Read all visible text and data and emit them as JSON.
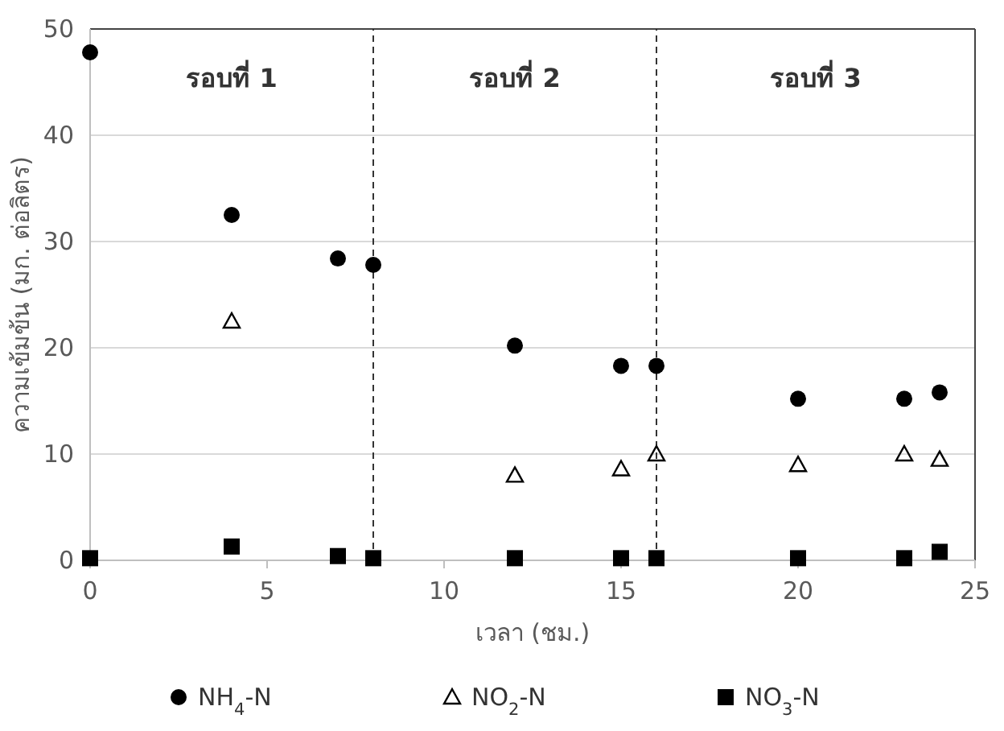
{
  "chart_data": {
    "type": "scatter",
    "xlabel": "เวลา (ชม.)",
    "ylabel": "ความเข้มข้น (มก. ต่อลิตร)",
    "xlim": [
      0,
      25
    ],
    "xticks": [
      0,
      5,
      10,
      15,
      20,
      25
    ],
    "ylim": [
      0,
      50
    ],
    "yticks": [
      0,
      10,
      20,
      30,
      40,
      50
    ],
    "grid": "y",
    "legend": "bottom",
    "series": [
      {
        "name": "NH$_{4}$-N",
        "color": "#000000",
        "marker": "circle",
        "x": [
          0,
          4,
          7,
          8,
          12,
          15,
          16,
          20,
          23,
          24
        ],
        "values": [
          47.8,
          32.5,
          28.4,
          27.8,
          20.2,
          18.3,
          18.3,
          15.2,
          15.2,
          15.8
        ]
      },
      {
        "name": "NO$_{2}$-N",
        "color": "#000000",
        "marker": "triangle",
        "x": [
          4,
          12,
          15,
          16,
          20,
          23,
          24
        ],
        "values": [
          22.5,
          8,
          8.6,
          10,
          9,
          10,
          9.5
        ]
      },
      {
        "name": "NO$_{3}$-N",
        "color": "#000000",
        "marker": "square",
        "x": [
          0,
          4,
          7,
          8,
          12,
          15,
          16,
          20,
          23,
          24
        ],
        "values": [
          0.2,
          1.3,
          0.4,
          0.2,
          0.2,
          0.2,
          0.2,
          0.2,
          0.2,
          0.8
        ]
      }
    ],
    "ref_lines": [
      {
        "axis": "x",
        "value": 8,
        "line_style": "dashed",
        "color": "#333333"
      },
      {
        "axis": "x",
        "value": 16,
        "line_style": "dashed",
        "color": "#333333"
      }
    ],
    "annotations": [
      "รอบที่ 1",
      "รอบที่ 2",
      "รอบที่ 3"
    ]
  }
}
